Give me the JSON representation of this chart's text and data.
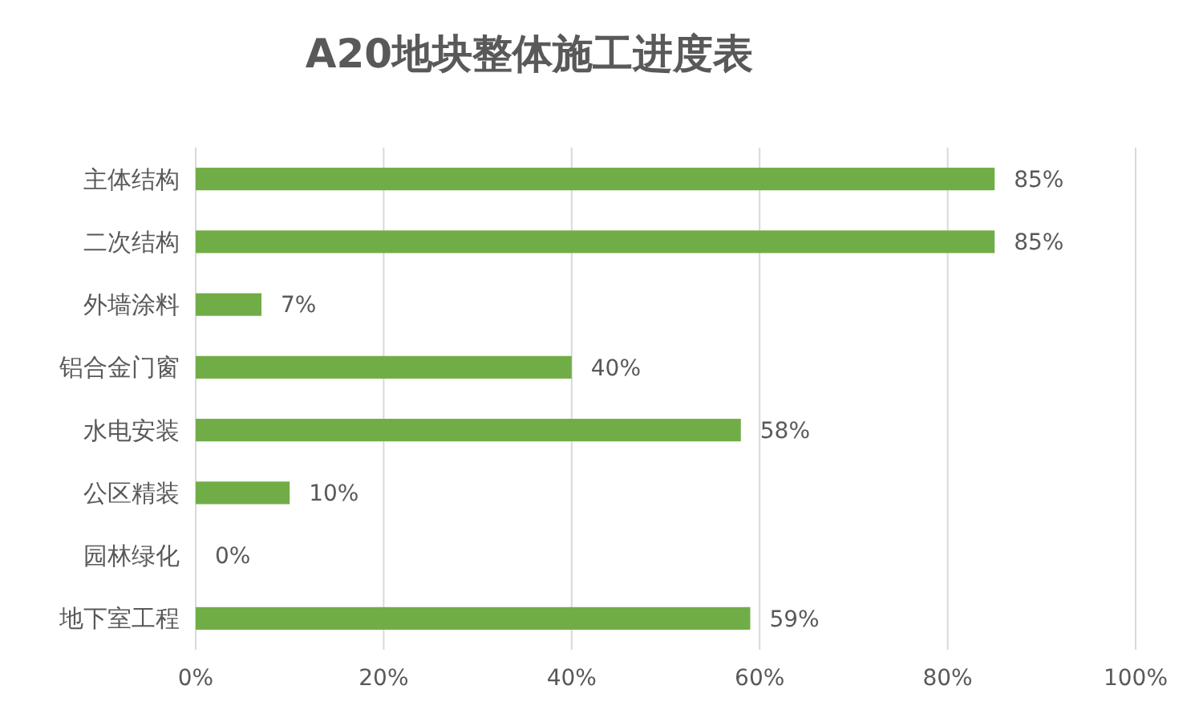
{
  "chart_data": {
    "type": "bar",
    "orientation": "horizontal",
    "title": "A20地块整体施工进度表",
    "categories": [
      "主体结构",
      "二次结构",
      "外墙涂料",
      "铝合金门窗",
      "水电安装",
      "公区精装",
      "园林绿化",
      "地下室工程"
    ],
    "values": [
      85,
      85,
      7,
      40,
      58,
      10,
      0,
      59
    ],
    "value_labels": [
      "85%",
      "85%",
      "7%",
      "40%",
      "58%",
      "10%",
      "0%",
      "59%"
    ],
    "color": "#70ad47",
    "xlim": [
      0,
      100
    ],
    "xticks": [
      {
        "value": 0,
        "label": "0%"
      },
      {
        "value": 20,
        "label": "20%"
      },
      {
        "value": 40,
        "label": "40%"
      },
      {
        "value": 60,
        "label": "60%"
      },
      {
        "value": 80,
        "label": "80%"
      },
      {
        "value": 100,
        "label": "100%"
      }
    ],
    "grid": "x"
  }
}
